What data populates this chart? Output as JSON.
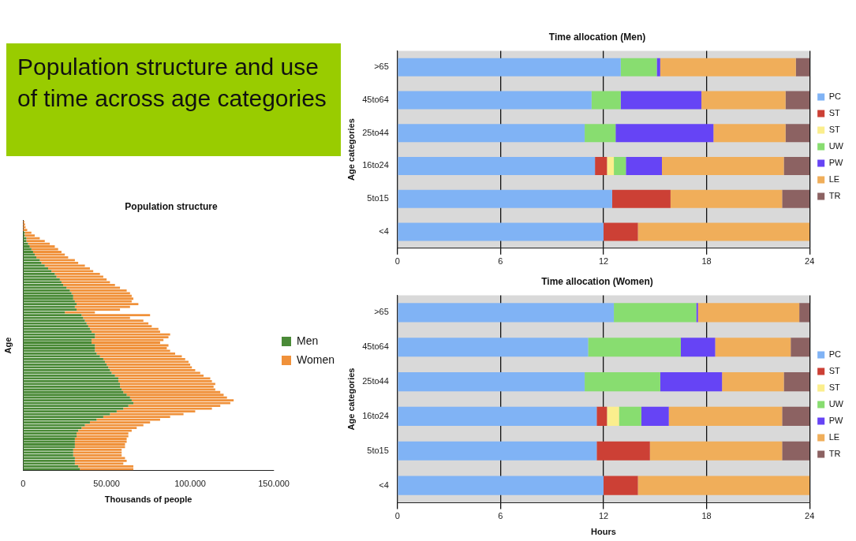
{
  "chart_data": [
    {
      "type": "other",
      "title": "Population structure and use of time across age categories"
    },
    {
      "type": "bar",
      "title": "Population structure",
      "xlabel": "Thousands of people",
      "ylabel": "Age",
      "orientation": "horizontal",
      "stacked": true,
      "legend": "right",
      "tick_labels": "x",
      "categories": [
        null,
        null,
        null,
        null,
        null,
        null,
        null,
        null,
        null,
        null,
        null,
        null,
        null,
        null,
        null,
        null,
        null,
        null,
        null,
        null,
        null,
        null,
        null,
        null,
        null,
        null,
        null,
        null,
        null,
        null,
        null,
        null,
        null,
        null,
        null,
        null,
        null,
        null,
        null,
        null,
        null,
        null,
        null,
        null,
        null,
        null,
        null,
        null,
        null,
        null,
        null,
        null,
        null,
        null,
        null,
        null,
        null,
        null,
        null,
        null,
        null,
        null,
        null,
        null,
        null,
        null,
        null,
        null,
        null,
        null,
        null,
        null,
        null,
        null,
        null,
        null,
        null,
        null,
        null,
        null,
        null,
        null,
        null,
        null,
        null,
        null,
        null,
        null,
        null,
        null,
        null
      ],
      "xlim": [
        0,
        150000
      ],
      "xticks": [
        0,
        {
          "value": 50000,
          "label": "50.000"
        },
        {
          "value": 100000,
          "label": "100.000"
        },
        {
          "value": 150000,
          "label": "150.000"
        }
      ],
      "series": [
        {
          "name": "Men",
          "color": "#4a8a37",
          "values": [
            null,
            null,
            null,
            null,
            1000,
            1000,
            2000,
            2000,
            3000,
            4000,
            5000,
            6000,
            7000,
            8000,
            10000,
            11000,
            13000,
            15000,
            17000,
            19000,
            20000,
            22000,
            23000,
            24000,
            26000,
            28000,
            29000,
            30000,
            30000,
            31000,
            32000,
            31000,
            32000,
            25000,
            35000,
            36000,
            37000,
            38000,
            39000,
            40000,
            41000,
            43000,
            43000,
            41000,
            41000,
            43000,
            43000,
            43000,
            44000,
            46000,
            48000,
            49000,
            50000,
            51000,
            52000,
            53000,
            55000,
            57000,
            57000,
            58000,
            58000,
            59000,
            60000,
            62000,
            64000,
            65000,
            66000,
            63000,
            60000,
            56000,
            52000,
            48000,
            44000,
            40000,
            37000,
            35000,
            33000,
            32000,
            32000,
            31000,
            31000,
            31000,
            31000,
            30000,
            30000,
            30000,
            31000,
            31000,
            31000,
            33000,
            34000
          ]
        },
        {
          "name": "Women",
          "color": "#f0913a",
          "values": [
            800,
            1200,
            1500,
            2500,
            4000,
            6000,
            8000,
            11000,
            13000,
            15000,
            16000,
            17000,
            18000,
            19000,
            21000,
            22000,
            24000,
            25000,
            25000,
            27000,
            28000,
            28000,
            29000,
            31000,
            32000,
            34000,
            35000,
            35000,
            36000,
            34000,
            37000,
            33000,
            26000,
            18000,
            41000,
            28000,
            35000,
            37000,
            38000,
            41000,
            41000,
            45000,
            44000,
            43000,
            41000,
            44000,
            43000,
            45000,
            47000,
            49000,
            49000,
            50000,
            50000,
            50000,
            51000,
            53000,
            53000,
            55000,
            56000,
            57000,
            56000,
            56000,
            58000,
            58000,
            58000,
            61000,
            58000,
            55000,
            53000,
            47000,
            44000,
            40000,
            38000,
            36000,
            35000,
            33000,
            32000,
            31000,
            31000,
            31000,
            31000,
            30000,
            30000,
            29000,
            29000,
            29000,
            30000,
            31000,
            29000,
            33000,
            32000
          ]
        }
      ]
    },
    {
      "type": "bar",
      "title": "Time allocation (Men)",
      "ylabel": "Age categories",
      "orientation": "horizontal",
      "stacked": true,
      "legend": "right",
      "grid": "x",
      "categories": [
        ">65",
        "45to64",
        "25to44",
        "16to24",
        "5to15",
        "<4"
      ],
      "xlim": [
        0,
        24
      ],
      "xticks": [
        0,
        6,
        12,
        18,
        24
      ],
      "series": [
        {
          "name": "PC",
          "color": "#80b3f5",
          "values": [
            13,
            11.3,
            10.9,
            11.5,
            12.5,
            12
          ]
        },
        {
          "name": "ST",
          "color": "#cc4035",
          "values": [
            0,
            0,
            0,
            0.7,
            3.4,
            2
          ]
        },
        {
          "name": "ST",
          "color": "#fbee8d",
          "values": [
            0,
            0,
            0,
            0.4,
            0,
            0
          ]
        },
        {
          "name": "UW",
          "color": "#88dd70",
          "values": [
            2.1,
            1.7,
            1.8,
            0.7,
            0,
            0
          ]
        },
        {
          "name": "PW",
          "color": "#6644f5",
          "values": [
            0.2,
            4.7,
            5.7,
            2.1,
            0,
            0
          ]
        },
        {
          "name": "LE",
          "color": "#f0ae5a",
          "values": [
            7.9,
            4.9,
            4.2,
            7.1,
            6.5,
            10
          ]
        },
        {
          "name": "TR",
          "color": "#8c6262",
          "values": [
            0.8,
            1.4,
            1.4,
            1.5,
            1.6,
            0
          ]
        }
      ]
    },
    {
      "type": "bar",
      "title": "Time allocation (Women)",
      "xlabel": "Hours",
      "ylabel": "Age categories",
      "orientation": "horizontal",
      "stacked": true,
      "legend": "right",
      "grid": "x",
      "categories": [
        ">65",
        "45to64",
        "25to44",
        "16to24",
        "5to15",
        "<4"
      ],
      "xlim": [
        0,
        24
      ],
      "xticks": [
        0,
        6,
        12,
        18,
        24
      ],
      "series": [
        {
          "name": "PC",
          "color": "#80b3f5",
          "values": [
            12.6,
            11.1,
            10.9,
            11.6,
            11.6,
            12
          ]
        },
        {
          "name": "ST",
          "color": "#cc4035",
          "values": [
            0,
            0,
            0,
            0.6,
            3.1,
            2
          ]
        },
        {
          "name": "ST",
          "color": "#fbee8d",
          "values": [
            0,
            0,
            0,
            0.7,
            0,
            0
          ]
        },
        {
          "name": "UW",
          "color": "#88dd70",
          "values": [
            4.8,
            5.4,
            4.4,
            1.3,
            0,
            0
          ]
        },
        {
          "name": "PW",
          "color": "#6644f5",
          "values": [
            0.1,
            2,
            3.6,
            1.6,
            0,
            0
          ]
        },
        {
          "name": "LE",
          "color": "#f0ae5a",
          "values": [
            5.9,
            4.4,
            3.6,
            6.6,
            7.7,
            10
          ]
        },
        {
          "name": "TR",
          "color": "#8c6262",
          "values": [
            0.6,
            1.1,
            1.5,
            1.6,
            1.6,
            0
          ]
        }
      ]
    }
  ]
}
